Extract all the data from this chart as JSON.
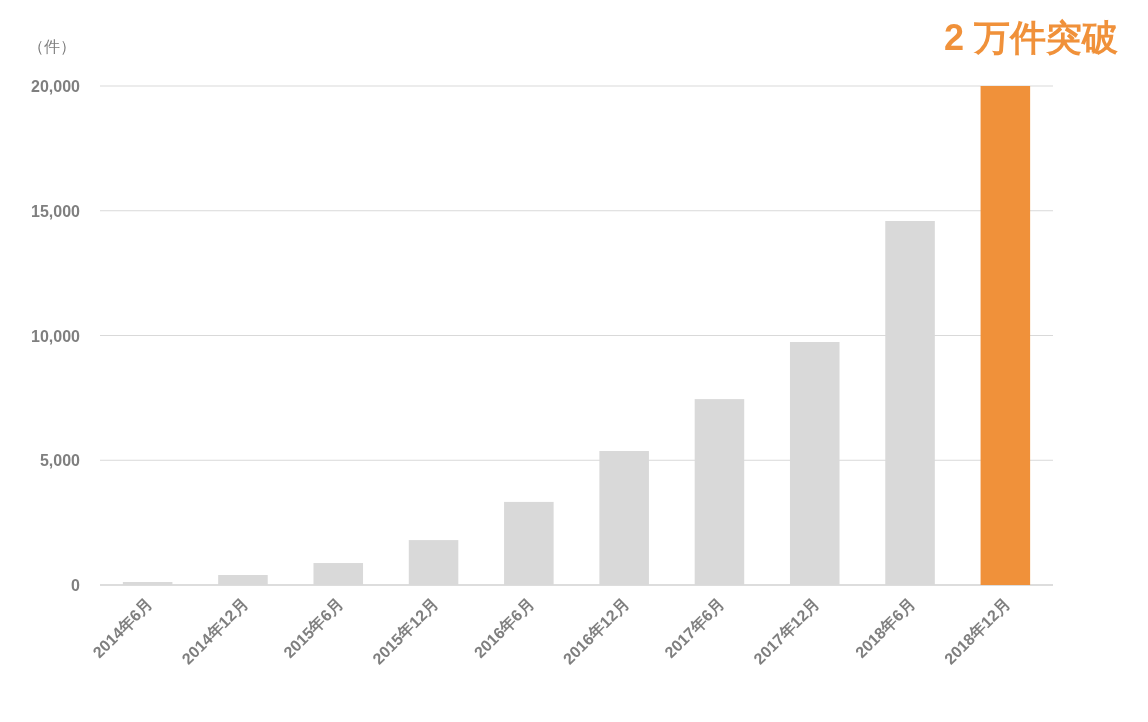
{
  "chart_data": {
    "type": "bar",
    "ylabel": "（件）",
    "categories": [
      "2014年6月",
      "2014年12月",
      "2015年6月",
      "2015年12月",
      "2016年6月",
      "2016年12月",
      "2017年6月",
      "2017年12月",
      "2018年6月",
      "2018年12月"
    ],
    "values": [
      120,
      400,
      880,
      1800,
      3330,
      5370,
      7450,
      9740,
      14590,
      20000
    ],
    "colors": [
      "#d9d9d9",
      "#d9d9d9",
      "#d9d9d9",
      "#d9d9d9",
      "#d9d9d9",
      "#d9d9d9",
      "#d9d9d9",
      "#d9d9d9",
      "#d9d9d9",
      "#f0913a"
    ],
    "ylim": [
      0,
      20000
    ],
    "yticks": [
      {
        "value": 0,
        "label": "0"
      },
      {
        "value": 5000,
        "label": "5,000"
      },
      {
        "value": 10000,
        "label": "10,000"
      },
      {
        "value": 15000,
        "label": "15,000"
      },
      {
        "value": 20000,
        "label": "20,000"
      }
    ],
    "grid": "y",
    "annotations": [
      "2 万件突破"
    ]
  }
}
